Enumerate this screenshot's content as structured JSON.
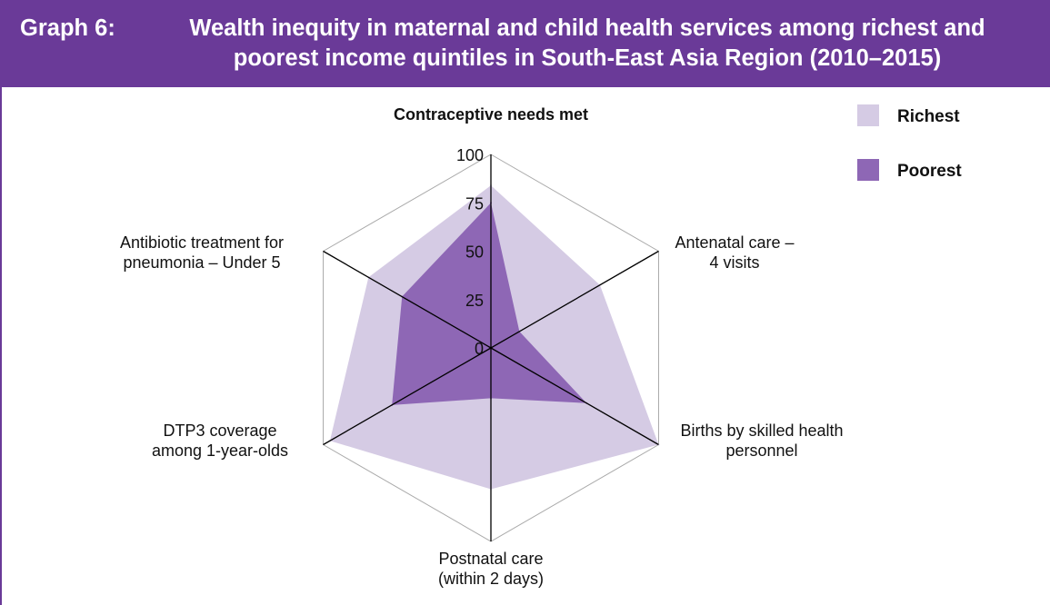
{
  "header": {
    "label": "Graph 6:",
    "title_line1": "Wealth inequity in maternal and child health services among richest and",
    "title_line2": "poorest income quintiles in South-East Asia Region (2010–2015)"
  },
  "colors": {
    "header_bg": "#6a3a98",
    "richest": "#d5cbe4",
    "poorest": "#8e67b5",
    "grid": "#a9a9a9",
    "axis": "#000000"
  },
  "chart_data": {
    "type": "radar",
    "axes": [
      "Contraceptive needs met",
      "Antenatal care – 4 visits",
      "Births by skilled health personnel",
      "Postnatal care (within 2 days)",
      "DTP3 coverage among 1-year-olds",
      "Antibiotic treatment for pneumonia – Under 5"
    ],
    "axis_label_lines": [
      [
        "Contraceptive needs met"
      ],
      [
        "Antenatal care –",
        "4 visits"
      ],
      [
        "Births by skilled health",
        "personnel"
      ],
      [
        "Postnatal care",
        "(within 2 days)"
      ],
      [
        "DTP3 coverage",
        "among 1-year-olds"
      ],
      [
        "Antibiotic treatment for",
        "pneumonia – Under 5"
      ]
    ],
    "range": [
      0,
      100
    ],
    "ticks": [
      0,
      25,
      50,
      75,
      100
    ],
    "series": [
      {
        "name": "Richest",
        "values": [
          84,
          65,
          100,
          73,
          96,
          73
        ]
      },
      {
        "name": "Poorest",
        "values": [
          75,
          17,
          57,
          26,
          59,
          53
        ]
      }
    ],
    "legend_position": "top-right"
  }
}
